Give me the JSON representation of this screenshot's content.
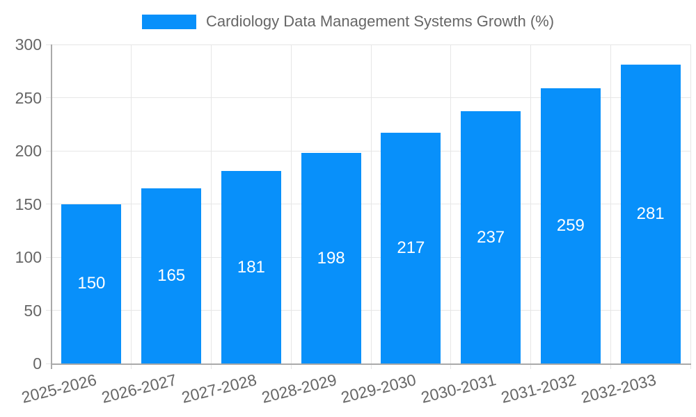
{
  "chart_data": {
    "type": "bar",
    "title": "Cardiology Data Management Systems Growth (%)",
    "categories": [
      "2025-2026",
      "2026-2027",
      "2027-2028",
      "2028-2029",
      "2029-2030",
      "2030-2031",
      "2031-2032",
      "2032-2033"
    ],
    "values": [
      150,
      165,
      181,
      198,
      217,
      237,
      259,
      281
    ],
    "xlabel": "",
    "ylabel": "",
    "ylim": [
      0,
      300
    ],
    "yticks": [
      0,
      50,
      100,
      150,
      200,
      250,
      300
    ],
    "grid": true,
    "legend_position": "top",
    "colors": {
      "bar": "#0890FA",
      "grid": "#E6E6E6",
      "axis": "#A9A9A9",
      "tick_text": "#666666",
      "value_text": "#FFFFFF"
    }
  }
}
